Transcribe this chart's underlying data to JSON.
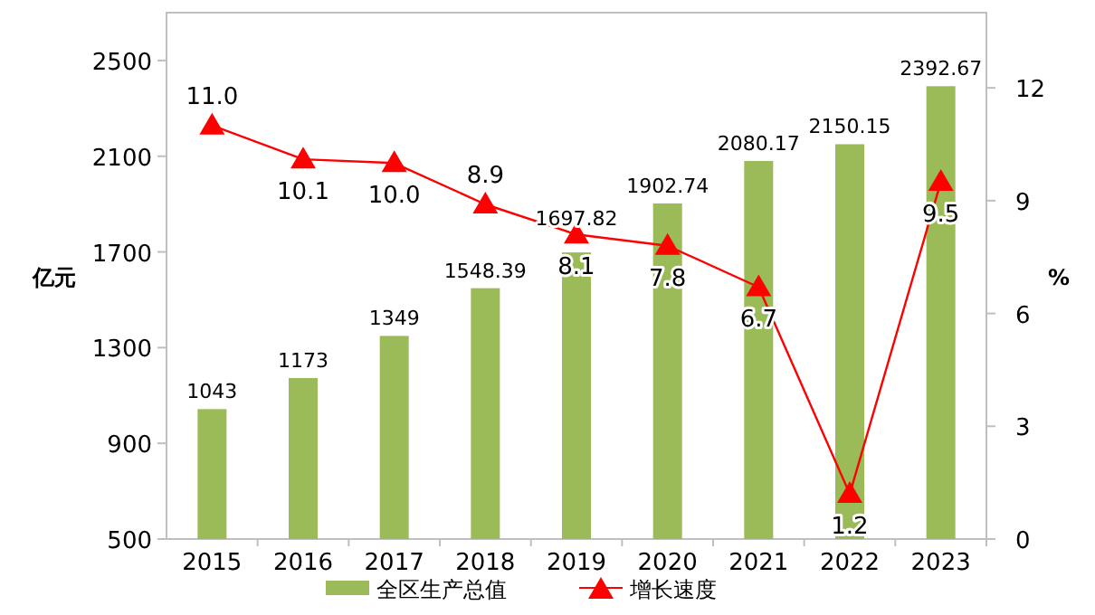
{
  "chart_data": {
    "type": "bar",
    "categories": [
      "2015",
      "2016",
      "2017",
      "2018",
      "2019",
      "2020",
      "2021",
      "2022",
      "2023"
    ],
    "ylabel": "亿元",
    "y2label": "%",
    "ylim": [
      500,
      2700
    ],
    "yticks": [
      500,
      900,
      1300,
      1700,
      2100,
      2500
    ],
    "y2lim": [
      0,
      14
    ],
    "y2ticks": [
      0,
      3,
      6,
      9,
      12
    ],
    "legend": "bottom",
    "data_labels": true,
    "grid": false,
    "series": [
      {
        "name": "全区生产总值",
        "color": "#9bbb59",
        "values": [
          1043,
          1173,
          1349,
          1548.39,
          1697.82,
          1902.74,
          2080.17,
          2150.15,
          2392.67
        ]
      },
      {
        "name": "增长速度",
        "type": "line",
        "axis": "y2",
        "color": "#ff0000",
        "marker": "triangle",
        "values": [
          11.0,
          10.1,
          10.0,
          8.9,
          8.1,
          7.8,
          6.7,
          1.2,
          9.5
        ],
        "value_labels": [
          "11.0",
          "10.1",
          "10.0",
          "8.9",
          "8.1",
          "7.8",
          "6.7",
          "1.2",
          "9.5"
        ]
      }
    ]
  }
}
